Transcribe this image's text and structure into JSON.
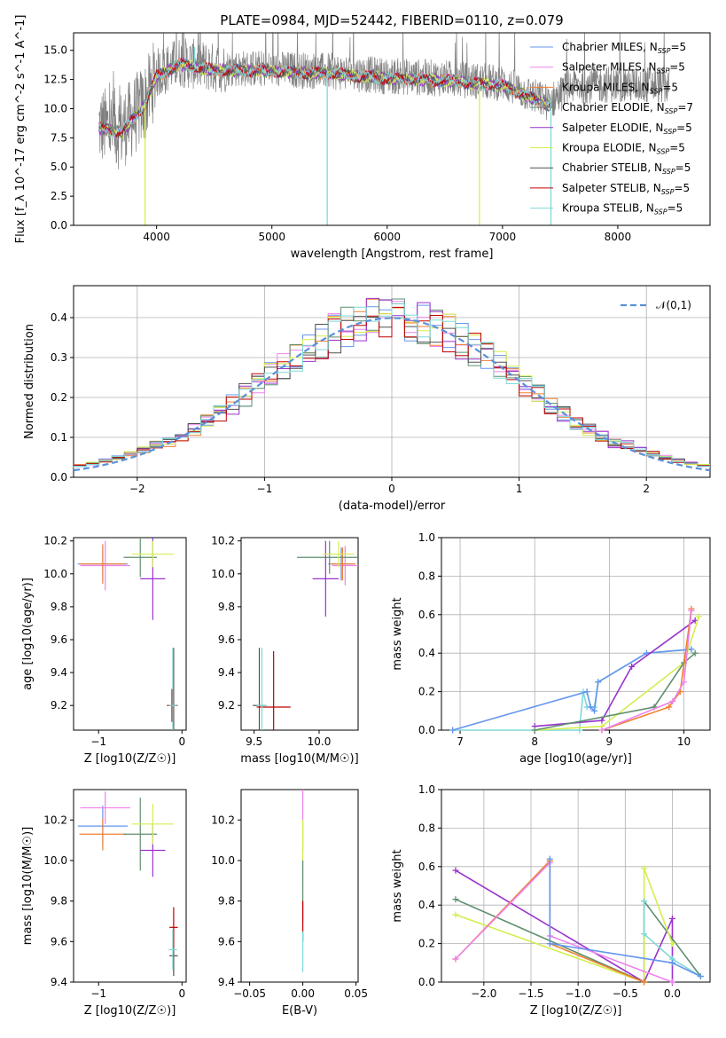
{
  "colors": {
    "Chabrier MILES": "#6495ed",
    "Salpeter MILES": "#ee82ee",
    "Kroupa MILES": "#f08030",
    "Chabrier ELODIE": "#5f8f6f",
    "Salpeter ELODIE": "#9932cc",
    "Kroupa ELODIE": "#d4ee50",
    "Chabrier STELIB": "#505050",
    "Salpeter STELIB": "#c00000",
    "Kroupa STELIB": "#7fd8d8",
    "data": "#808080",
    "grid": "#b0b0b0"
  },
  "chart_data": [
    {
      "id": "spectrum",
      "type": "line",
      "title": "PLATE=0984, MJD=52442, FIBERID=0110, z=0.079",
      "xlabel": "wavelength [Angstrom, rest frame]",
      "ylabel": "Flux [f_λ 10^-17 erg cm^-2 s^-1 A^-1]",
      "xlim": [
        3280,
        8800
      ],
      "ylim": [
        0,
        16.5
      ],
      "xticks": [
        4000,
        5000,
        6000,
        7000,
        8000
      ],
      "yticks": [
        0.0,
        2.5,
        5.0,
        7.5,
        10.0,
        12.5,
        15.0
      ],
      "grid": false,
      "legend": "top-right",
      "legend_entries": [
        {
          "name": "Chabrier MILES, N",
          "sub": "SSP",
          "suffix": "=5"
        },
        {
          "name": "Salpeter MILES, N",
          "sub": "SSP",
          "suffix": "=5"
        },
        {
          "name": "Kroupa MILES, N",
          "sub": "SSP",
          "suffix": "=5"
        },
        {
          "name": "Chabrier ELODIE, N",
          "sub": "SSP",
          "suffix": "=7"
        },
        {
          "name": "Salpeter ELODIE, N",
          "sub": "SSP",
          "suffix": "=5"
        },
        {
          "name": "Kroupa ELODIE, N",
          "sub": "SSP",
          "suffix": "=5"
        },
        {
          "name": "Chabrier STELIB, N",
          "sub": "SSP",
          "suffix": "=5"
        },
        {
          "name": "Salpeter STELIB, N",
          "sub": "SSP",
          "suffix": "=5"
        },
        {
          "name": "Kroupa STELIB, N",
          "sub": "SSP",
          "suffix": "=5"
        }
      ],
      "data_range": [
        3500,
        8450
      ],
      "model_range": [
        3500,
        7420
      ],
      "continuum_anchors": [
        [
          3500,
          8.5
        ],
        [
          3700,
          8.2
        ],
        [
          3900,
          10.5
        ],
        [
          4000,
          13.0
        ],
        [
          4200,
          14.0
        ],
        [
          4500,
          13.5
        ],
        [
          5000,
          13.4
        ],
        [
          5500,
          13.2
        ],
        [
          6000,
          12.8
        ],
        [
          6500,
          12.6
        ],
        [
          7000,
          12.2
        ],
        [
          7400,
          10.5
        ],
        [
          7600,
          12.0
        ],
        [
          8000,
          12.1
        ],
        [
          8450,
          12.0
        ]
      ],
      "spikes": [
        [
          3900,
          0
        ],
        [
          4330,
          15.3
        ],
        [
          5480,
          0
        ],
        [
          6800,
          0
        ],
        [
          7420,
          0
        ]
      ]
    },
    {
      "id": "residuals",
      "type": "histogram",
      "xlabel": "(data-model)/error",
      "ylabel": "Normed distribution",
      "xlim": [
        -2.5,
        2.5
      ],
      "ylim": [
        0,
        0.48
      ],
      "xticks": [
        -2,
        -1,
        0,
        1,
        2
      ],
      "yticks": [
        0.0,
        0.1,
        0.2,
        0.3,
        0.4
      ],
      "grid": true,
      "legend": "top-right",
      "reference_curve": {
        "name": "𝒩(0,1)",
        "style": "dashed",
        "color": "#5b8fd9"
      },
      "bin_width": 0.1
    },
    {
      "id": "age_vs_Z",
      "type": "errorbar",
      "xlabel": "Z [log10(Z/Z☉)]",
      "ylabel": "age [log10(age/yr)]",
      "xlim": [
        -1.3,
        0.05
      ],
      "ylim": [
        9.05,
        10.22
      ],
      "xticks": [
        -1,
        0
      ],
      "yticks": [
        9.2,
        9.4,
        9.6,
        9.8,
        10.0,
        10.2
      ],
      "points": [
        {
          "model": "Chabrier MILES",
          "x": -0.95,
          "xerr": 0.3,
          "y": 10.06,
          "yerr": 0.1
        },
        {
          "model": "Salpeter MILES",
          "x": -0.92,
          "xerr": 0.3,
          "y": 10.05,
          "yerr": 0.15
        },
        {
          "model": "Kroupa MILES",
          "x": -0.95,
          "xerr": 0.28,
          "y": 10.06,
          "yerr": 0.12
        },
        {
          "model": "Chabrier ELODIE",
          "x": -0.5,
          "xerr": 0.2,
          "y": 10.1,
          "yerr": 0.12
        },
        {
          "model": "Salpeter ELODIE",
          "x": -0.35,
          "xerr": 0.15,
          "y": 9.97,
          "yerr": 0.25
        },
        {
          "model": "Kroupa ELODIE",
          "x": -0.35,
          "xerr": 0.25,
          "y": 10.12,
          "yerr": 0.08
        },
        {
          "model": "Chabrier STELIB",
          "x": -0.1,
          "xerr": 0.05,
          "y": 9.2,
          "yerr": 0.35
        },
        {
          "model": "Salpeter STELIB",
          "x": -0.12,
          "xerr": 0.06,
          "y": 9.2,
          "yerr": 0.1
        },
        {
          "model": "Kroupa STELIB",
          "x": -0.11,
          "xerr": 0.05,
          "y": 9.2,
          "yerr": 0.35
        }
      ]
    },
    {
      "id": "age_vs_mass",
      "type": "errorbar",
      "xlabel": "mass [log10(M/M☉)]",
      "ylabel": "",
      "xlim": [
        9.4,
        10.3
      ],
      "ylim": [
        9.05,
        10.22
      ],
      "xticks": [
        9.5,
        10.0
      ],
      "yticks": [
        9.2,
        9.4,
        9.6,
        9.8,
        10.0,
        10.2
      ],
      "points": [
        {
          "model": "Chabrier MILES",
          "x": 10.17,
          "xerr": 0.1,
          "y": 10.06,
          "yerr": 0.1
        },
        {
          "model": "Salpeter MILES",
          "x": 10.2,
          "xerr": 0.1,
          "y": 10.05,
          "yerr": 0.12
        },
        {
          "model": "Kroupa MILES",
          "x": 10.18,
          "xerr": 0.1,
          "y": 10.06,
          "yerr": 0.1
        },
        {
          "model": "Chabrier ELODIE",
          "x": 10.08,
          "xerr": 0.25,
          "y": 10.1,
          "yerr": 0.1
        },
        {
          "model": "Salpeter ELODIE",
          "x": 10.05,
          "xerr": 0.1,
          "y": 9.97,
          "yerr": 0.23
        },
        {
          "model": "Kroupa ELODIE",
          "x": 10.15,
          "xerr": 0.12,
          "y": 10.12,
          "yerr": 0.08
        },
        {
          "model": "Chabrier STELIB",
          "x": 9.54,
          "xerr": 0.05,
          "y": 9.2,
          "yerr": 0.35
        },
        {
          "model": "Salpeter STELIB",
          "x": 9.65,
          "xerr": 0.13,
          "y": 9.19,
          "yerr": 0.34
        },
        {
          "model": "Kroupa STELIB",
          "x": 9.56,
          "xerr": 0.04,
          "y": 9.2,
          "yerr": 0.35
        }
      ]
    },
    {
      "id": "mass_weight_vs_age",
      "type": "line",
      "xlabel": "age  [log10(age/yr)]",
      "ylabel": "mass weight",
      "xlim": [
        6.75,
        10.35
      ],
      "ylim": [
        0,
        1.0
      ],
      "xticks": [
        7,
        8,
        9,
        10
      ],
      "yticks": [
        0.0,
        0.2,
        0.4,
        0.6,
        0.8,
        1.0
      ],
      "grid": true,
      "series": [
        {
          "model": "Kroupa STELIB",
          "x": [
            6.9,
            8.6,
            8.65,
            8.7,
            8.8,
            8.85,
            9.5,
            10.1
          ],
          "y": [
            0.0,
            0.0,
            0.2,
            0.12,
            0.12,
            0.25,
            0.4,
            0.42
          ]
        },
        {
          "model": "Chabrier MILES",
          "x": [
            6.9,
            8.7,
            8.75,
            8.8,
            8.85,
            9.5,
            10.1
          ],
          "y": [
            0.0,
            0.2,
            0.12,
            0.1,
            0.25,
            0.4,
            0.42
          ]
        },
        {
          "model": "Salpeter ELODIE",
          "x": [
            8.0,
            8.9,
            9.3,
            10.15
          ],
          "y": [
            0.02,
            0.05,
            0.33,
            0.57
          ]
        },
        {
          "model": "Kroupa ELODIE",
          "x": [
            8.0,
            8.9,
            10.0,
            10.2
          ],
          "y": [
            0.0,
            0.02,
            0.35,
            0.59
          ]
        },
        {
          "model": "Chabrier ELODIE",
          "x": [
            8.0,
            9.6,
            10.0,
            10.15
          ],
          "y": [
            0.0,
            0.12,
            0.35,
            0.4
          ]
        },
        {
          "model": "Kroupa MILES",
          "x": [
            8.9,
            9.8,
            9.95,
            10.1
          ],
          "y": [
            0.0,
            0.12,
            0.2,
            0.63
          ]
        },
        {
          "model": "Salpeter MILES",
          "x": [
            8.9,
            9.85,
            10.0,
            10.1
          ],
          "y": [
            0.0,
            0.15,
            0.25,
            0.62
          ]
        }
      ]
    },
    {
      "id": "mass_vs_Z",
      "type": "errorbar",
      "xlabel": "Z [log10(Z/Z☉)]",
      "ylabel": "mass [log10(M/M☉)]",
      "xlim": [
        -1.3,
        0.05
      ],
      "ylim": [
        9.4,
        10.35
      ],
      "xticks": [
        -1,
        0
      ],
      "yticks": [
        9.4,
        9.6,
        9.8,
        10.0,
        10.2
      ],
      "points": [
        {
          "model": "Chabrier MILES",
          "x": -0.95,
          "xerr": 0.3,
          "y": 10.17,
          "yerr": 0.1
        },
        {
          "model": "Salpeter MILES",
          "x": -0.92,
          "xerr": 0.3,
          "y": 10.26,
          "yerr": 0.08
        },
        {
          "model": "Kroupa MILES",
          "x": -0.95,
          "xerr": 0.28,
          "y": 10.13,
          "yerr": 0.08
        },
        {
          "model": "Chabrier ELODIE",
          "x": -0.5,
          "xerr": 0.2,
          "y": 10.13,
          "yerr": 0.18
        },
        {
          "model": "Salpeter ELODIE",
          "x": -0.35,
          "xerr": 0.15,
          "y": 10.05,
          "yerr": 0.13
        },
        {
          "model": "Kroupa ELODIE",
          "x": -0.35,
          "xerr": 0.25,
          "y": 10.18,
          "yerr": 0.1
        },
        {
          "model": "Chabrier STELIB",
          "x": -0.1,
          "xerr": 0.05,
          "y": 9.53,
          "yerr": 0.1
        },
        {
          "model": "Salpeter STELIB",
          "x": -0.1,
          "xerr": 0.05,
          "y": 9.67,
          "yerr": 0.1
        },
        {
          "model": "Kroupa STELIB",
          "x": -0.11,
          "xerr": 0.05,
          "y": 9.56,
          "yerr": 0.1
        }
      ]
    },
    {
      "id": "mass_vs_ebv",
      "type": "errorbar",
      "xlabel": "E(B-V)",
      "ylabel": "",
      "xlim": [
        -0.058,
        0.052
      ],
      "ylim": [
        9.4,
        10.35
      ],
      "xticks": [
        -0.05,
        0.0,
        0.05
      ],
      "yticks": [
        9.4,
        9.6,
        9.8,
        10.0,
        10.2
      ],
      "points": [
        {
          "model": "Salpeter MILES",
          "x": 0.0,
          "xerr": 0,
          "y": 10.2,
          "yerr": 0.15
        },
        {
          "model": "Kroupa ELODIE",
          "x": 0.0,
          "xerr": 0,
          "y": 10.05,
          "yerr": 0.15
        },
        {
          "model": "Chabrier ELODIE",
          "x": 0.0,
          "xerr": 0,
          "y": 9.85,
          "yerr": 0.15
        },
        {
          "model": "Salpeter STELIB",
          "x": 0.0,
          "xerr": 0,
          "y": 9.7,
          "yerr": 0.1
        },
        {
          "model": "Kroupa STELIB",
          "x": 0.0,
          "xerr": 0,
          "y": 9.55,
          "yerr": 0.1
        }
      ]
    },
    {
      "id": "mass_weight_vs_Z",
      "type": "line",
      "xlabel": "Z [log10(Z/Z☉)]",
      "ylabel": "mass weight",
      "xlim": [
        -2.45,
        0.4
      ],
      "ylim": [
        0,
        1.0
      ],
      "xticks": [
        -2.0,
        -1.5,
        -1.0,
        -0.5,
        0.0
      ],
      "yticks": [
        0.0,
        0.2,
        0.4,
        0.6,
        0.8,
        1.0
      ],
      "grid": true,
      "series": [
        {
          "model": "Salpeter ELODIE",
          "x": [
            -2.3,
            -0.3,
            0.0,
            0.0
          ],
          "y": [
            0.58,
            0.0,
            0.33,
            0.0
          ]
        },
        {
          "model": "Chabrier ELODIE",
          "x": [
            -2.3,
            -0.3,
            -0.3,
            0.3
          ],
          "y": [
            0.43,
            0.0,
            0.42,
            0.03
          ]
        },
        {
          "model": "Kroupa ELODIE",
          "x": [
            -2.3,
            -0.3,
            -0.3,
            0.0
          ],
          "y": [
            0.35,
            0.0,
            0.59,
            0.2
          ]
        },
        {
          "model": "Kroupa MILES",
          "x": [
            -2.3,
            -1.3,
            -1.3,
            -0.3
          ],
          "y": [
            0.12,
            0.63,
            0.2,
            0.0
          ]
        },
        {
          "model": "Salpeter MILES",
          "x": [
            -2.3,
            -1.3,
            -1.3,
            0.0
          ],
          "y": [
            0.12,
            0.62,
            0.24,
            0.0
          ]
        },
        {
          "model": "Kroupa STELIB",
          "x": [
            -0.3,
            -0.3,
            0.0,
            0.3
          ],
          "y": [
            0.42,
            0.25,
            0.12,
            0.03
          ]
        },
        {
          "model": "Chabrier MILES",
          "x": [
            -1.3,
            -1.3,
            0.0,
            0.3
          ],
          "y": [
            0.64,
            0.2,
            0.1,
            0.03
          ]
        }
      ]
    }
  ]
}
